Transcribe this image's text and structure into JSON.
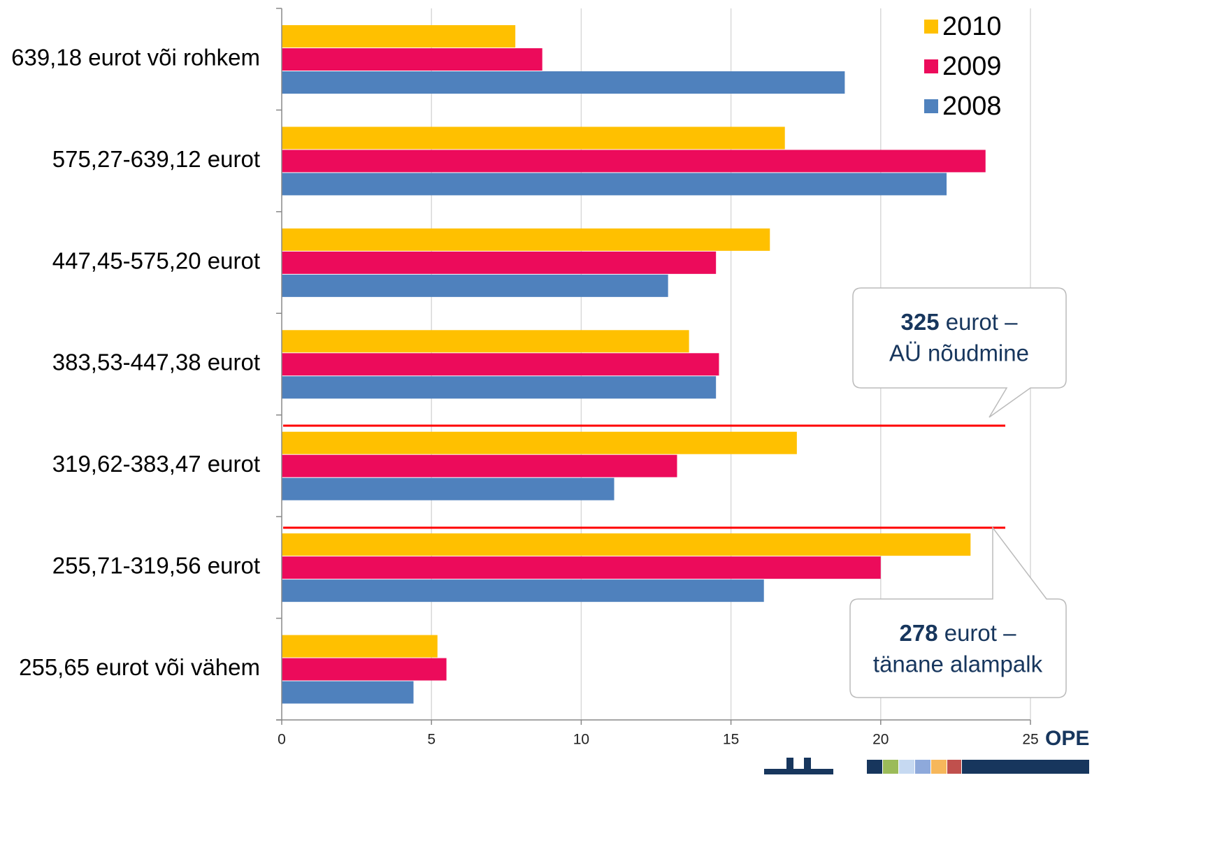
{
  "chart_data": {
    "type": "barh",
    "categories": [
      "639,18 eurot või rohkem",
      "575,27-639,12 eurot",
      "447,45-575,20 eurot",
      "383,53-447,38 eurot",
      "319,62-383,47 eurot",
      "255,71-319,56 eurot",
      "255,65 eurot või vähem"
    ],
    "series": [
      {
        "name": "2010",
        "color": "#FFC000",
        "values": [
          7.8,
          16.8,
          16.3,
          13.6,
          17.2,
          23.0,
          5.2
        ]
      },
      {
        "name": "2009",
        "color": "#EC0B5B",
        "values": [
          8.7,
          23.5,
          14.5,
          14.6,
          13.2,
          20.0,
          5.5
        ]
      },
      {
        "name": "2008",
        "color": "#4F81BD",
        "values": [
          18.8,
          22.2,
          12.9,
          14.5,
          11.1,
          16.1,
          4.4
        ]
      }
    ],
    "xlim": [
      0,
      25
    ],
    "xticks": [
      0,
      5,
      10,
      15,
      20,
      25
    ],
    "grid": true,
    "legend": "top-right",
    "annotations": [
      {
        "bold": "325",
        "text": " eurot –",
        "line2": "AÜ nõudmine"
      },
      {
        "bold": "278",
        "text": " eurot –",
        "line2": "tänane alampalk"
      }
    ],
    "logo_text": "OPE"
  }
}
